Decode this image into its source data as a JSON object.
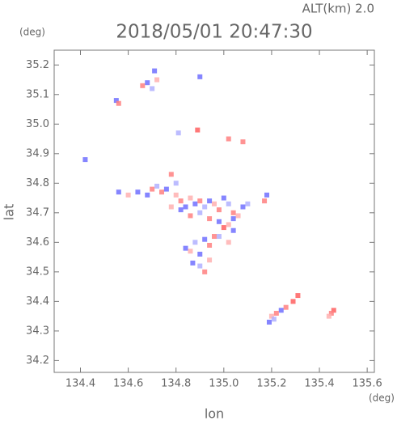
{
  "chart_data": {
    "type": "scatter",
    "title": "2018/05/01 20:47:30",
    "subtitle": "ALT(km) 2.0",
    "x_label": "lon",
    "y_label": "lat",
    "x_unit": "(deg)",
    "y_unit": "(deg)",
    "xlim": [
      134.29,
      135.63
    ],
    "ylim": [
      34.16,
      35.25
    ],
    "xticks": [
      134.4,
      134.6,
      134.8,
      {
        "value": 135,
        "label": "135.0"
      },
      135.2,
      135.4,
      135.6
    ],
    "yticks": [
      34.2,
      34.3,
      34.4,
      34.5,
      34.6,
      34.7,
      34.8,
      34.9,
      {
        "value": 35,
        "label": "35.0"
      },
      35.1,
      35.2
    ],
    "x": [
      134.55,
      134.56,
      134.66,
      134.68,
      134.7,
      134.71,
      134.72,
      134.9,
      134.42,
      134.89,
      135.02,
      135.08,
      134.81,
      134.56,
      134.6,
      134.64,
      134.68,
      134.7,
      134.72,
      134.74,
      134.76,
      134.78,
      134.8,
      134.8,
      134.82,
      134.84,
      134.86,
      134.88,
      134.9,
      134.92,
      134.94,
      134.96,
      134.98,
      135.0,
      135.02,
      135.04,
      135.06,
      135.08,
      135.1,
      135.18,
      135.17,
      134.78,
      134.82,
      134.86,
      134.9,
      134.94,
      134.98,
      135.0,
      135.02,
      135.04,
      134.96,
      134.92,
      134.88,
      134.84,
      134.86,
      134.9,
      134.94,
      134.98,
      135.02,
      135.04,
      134.87,
      134.9,
      134.92,
      134.94,
      135.31,
      135.29,
      135.26,
      135.24,
      135.22,
      135.2,
      135.19,
      135.21,
      135.46,
      135.45,
      135.44
    ],
    "values": [
      35.08,
      35.07,
      35.13,
      35.14,
      35.12,
      35.18,
      35.15,
      35.16,
      34.88,
      34.98,
      34.95,
      34.94,
      34.97,
      34.77,
      34.76,
      34.77,
      34.76,
      34.78,
      34.79,
      34.77,
      34.78,
      34.83,
      34.8,
      34.76,
      34.74,
      34.72,
      34.75,
      34.73,
      34.74,
      34.72,
      34.74,
      34.73,
      34.71,
      34.75,
      34.73,
      34.7,
      34.69,
      34.72,
      34.73,
      34.76,
      34.74,
      34.72,
      34.71,
      34.69,
      34.7,
      34.68,
      34.67,
      34.65,
      34.66,
      34.64,
      34.62,
      34.61,
      34.6,
      34.58,
      34.57,
      34.56,
      34.59,
      34.62,
      34.6,
      34.68,
      34.53,
      34.52,
      34.5,
      34.54,
      34.42,
      34.4,
      34.38,
      34.37,
      34.36,
      34.35,
      34.33,
      34.34,
      34.37,
      34.36,
      34.35
    ],
    "colors": [
      "#7070ff",
      "#ff8080",
      "#ff8080",
      "#7070ff",
      "#b0b0ff",
      "#7070ff",
      "#ffb0b0",
      "#7070ff",
      "#7070ff",
      "#ff6060",
      "#ff8080",
      "#ff8080",
      "#b0b0ff",
      "#7070ff",
      "#ffb0b0",
      "#7070ff",
      "#7070ff",
      "#ff8080",
      "#b0b0ff",
      "#ff8080",
      "#7070ff",
      "#ff8080",
      "#b0b0ff",
      "#ffb0b0",
      "#ff8080",
      "#7070ff",
      "#ffb0b0",
      "#7070ff",
      "#ff8080",
      "#b0b0ff",
      "#7070ff",
      "#ffb0b0",
      "#ff8080",
      "#7070ff",
      "#b0b0ff",
      "#ff8080",
      "#ffb0b0",
      "#7070ff",
      "#b0b0ff",
      "#7070ff",
      "#ff8080",
      "#ffb0b0",
      "#7070ff",
      "#ff8080",
      "#b0b0ff",
      "#ff8080",
      "#7070ff",
      "#ff6060",
      "#ffb0b0",
      "#7070ff",
      "#ff8080",
      "#7070ff",
      "#b0b0ff",
      "#7070ff",
      "#ffb0b0",
      "#7070ff",
      "#ff8080",
      "#b0b0ff",
      "#ffb0b0",
      "#7070ff",
      "#7070ff",
      "#b0b0ff",
      "#ff8080",
      "#ffb0b0",
      "#ff6060",
      "#ff6060",
      "#ff8080",
      "#7070ff",
      "#ff8080",
      "#ffb0b0",
      "#7070ff",
      "#b0b0ff",
      "#ff6060",
      "#ff8080",
      "#ffb0b0"
    ]
  }
}
